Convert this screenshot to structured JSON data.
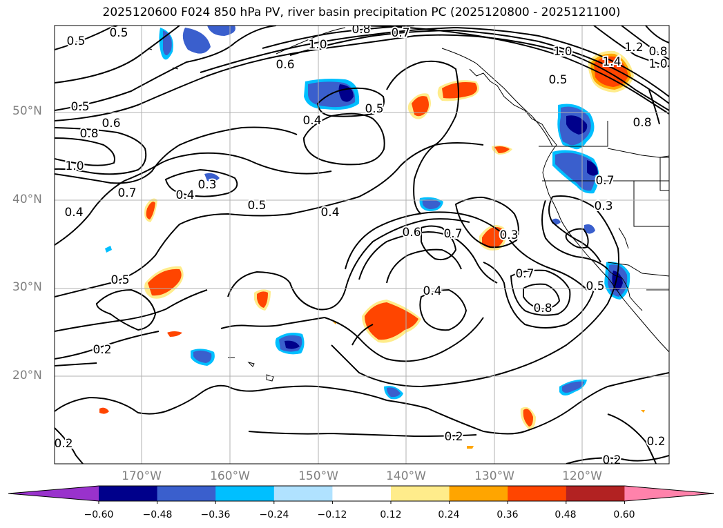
{
  "title": "2025120600 F024 850 hPa PV, river basin precipitation PC (2025120800 - 2025121100)",
  "lat_labels": [
    "50°N",
    "40°N",
    "30°N",
    "20°N"
  ],
  "lon_labels": [
    "170°W",
    "160°W",
    "150°W",
    "140°W",
    "130°W",
    "120°W"
  ],
  "colorbar": {
    "ticks": [
      "−0.60",
      "−0.48",
      "−0.36",
      "−0.24",
      "−0.12",
      "0.12",
      "0.24",
      "0.36",
      "0.48",
      "0.60"
    ],
    "colors": [
      "#9932cc",
      "#00008b",
      "#3a5fcd",
      "#00bfff",
      "#b0e2ff",
      "#ffffff",
      "#ffec8b",
      "#ffa500",
      "#ff4500",
      "#b22222",
      "#ff82ab"
    ]
  },
  "contour_labels": [
    "0.5",
    "0.5",
    "0.8",
    "0.7",
    "1.0",
    "0.6",
    "1.0",
    "0.5",
    "1.2",
    "0.8",
    "1.0",
    "1.4",
    "0.5",
    "0.6",
    "0.8",
    "1.0",
    "0.4",
    "0.5",
    "0.3",
    "0.4",
    "0.7",
    "0.4",
    "0.5",
    "0.4",
    "0.6",
    "0.7",
    "0.3",
    "0.7",
    "0.3",
    "0.7",
    "0.8",
    "0.5",
    "0.4",
    "0.5",
    "0.2",
    "0.2",
    "0.2",
    "0.2",
    "0.2",
    "0.8"
  ],
  "colors": {
    "contour": "#000000",
    "grid": "#b0b0b0",
    "coast": "#000000"
  }
}
